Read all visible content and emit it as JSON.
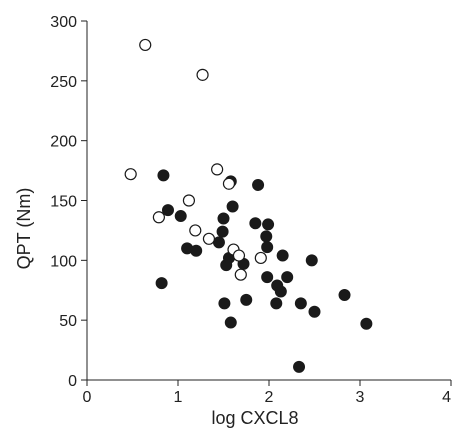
{
  "chart_data": {
    "type": "scatter",
    "title": "",
    "xlabel": "log CXCL8",
    "ylabel": "QPT (Nm)",
    "xlim": [
      0,
      4
    ],
    "ylim": [
      0,
      300
    ],
    "x_ticks": [
      0,
      1,
      2,
      3,
      4
    ],
    "x_tick_labels": [
      "0",
      "1",
      "2",
      "3",
      "4"
    ],
    "y_ticks": [
      0,
      50,
      100,
      150,
      200,
      250,
      300
    ],
    "y_tick_labels": [
      "0",
      "50",
      "100",
      "150",
      "200",
      "250",
      "300"
    ],
    "grid": false,
    "legend": false,
    "marker_fill": "#1a1a1a",
    "marker_edge": "#1a1a1a",
    "series": [
      {
        "marker": "filled-circle",
        "points": [
          {
            "x": 0.84,
            "y": 171
          },
          {
            "x": 0.89,
            "y": 142
          },
          {
            "x": 0.82,
            "y": 81
          },
          {
            "x": 1.03,
            "y": 137
          },
          {
            "x": 1.1,
            "y": 110
          },
          {
            "x": 1.2,
            "y": 108
          },
          {
            "x": 1.45,
            "y": 115
          },
          {
            "x": 1.49,
            "y": 124
          },
          {
            "x": 1.5,
            "y": 135
          },
          {
            "x": 1.51,
            "y": 64
          },
          {
            "x": 1.53,
            "y": 96
          },
          {
            "x": 1.56,
            "y": 102
          },
          {
            "x": 1.58,
            "y": 166
          },
          {
            "x": 1.6,
            "y": 145
          },
          {
            "x": 1.58,
            "y": 48
          },
          {
            "x": 1.72,
            "y": 97
          },
          {
            "x": 1.75,
            "y": 67
          },
          {
            "x": 1.85,
            "y": 131
          },
          {
            "x": 1.88,
            "y": 163
          },
          {
            "x": 1.97,
            "y": 120
          },
          {
            "x": 1.98,
            "y": 111
          },
          {
            "x": 1.99,
            "y": 130
          },
          {
            "x": 1.98,
            "y": 86
          },
          {
            "x": 2.08,
            "y": 64
          },
          {
            "x": 2.09,
            "y": 79
          },
          {
            "x": 2.13,
            "y": 74
          },
          {
            "x": 2.15,
            "y": 104
          },
          {
            "x": 2.2,
            "y": 86
          },
          {
            "x": 2.33,
            "y": 11
          },
          {
            "x": 2.35,
            "y": 64
          },
          {
            "x": 2.47,
            "y": 100
          },
          {
            "x": 2.5,
            "y": 57
          },
          {
            "x": 2.83,
            "y": 71
          },
          {
            "x": 3.07,
            "y": 47
          }
        ]
      },
      {
        "marker": "open-circle",
        "points": [
          {
            "x": 0.64,
            "y": 280
          },
          {
            "x": 0.48,
            "y": 172
          },
          {
            "x": 0.79,
            "y": 136
          },
          {
            "x": 1.12,
            "y": 150
          },
          {
            "x": 1.27,
            "y": 255
          },
          {
            "x": 1.19,
            "y": 125
          },
          {
            "x": 1.34,
            "y": 118
          },
          {
            "x": 1.43,
            "y": 176
          },
          {
            "x": 1.56,
            "y": 164
          },
          {
            "x": 1.61,
            "y": 109
          },
          {
            "x": 1.67,
            "y": 104
          },
          {
            "x": 1.69,
            "y": 88
          },
          {
            "x": 1.91,
            "y": 102
          }
        ]
      }
    ]
  }
}
